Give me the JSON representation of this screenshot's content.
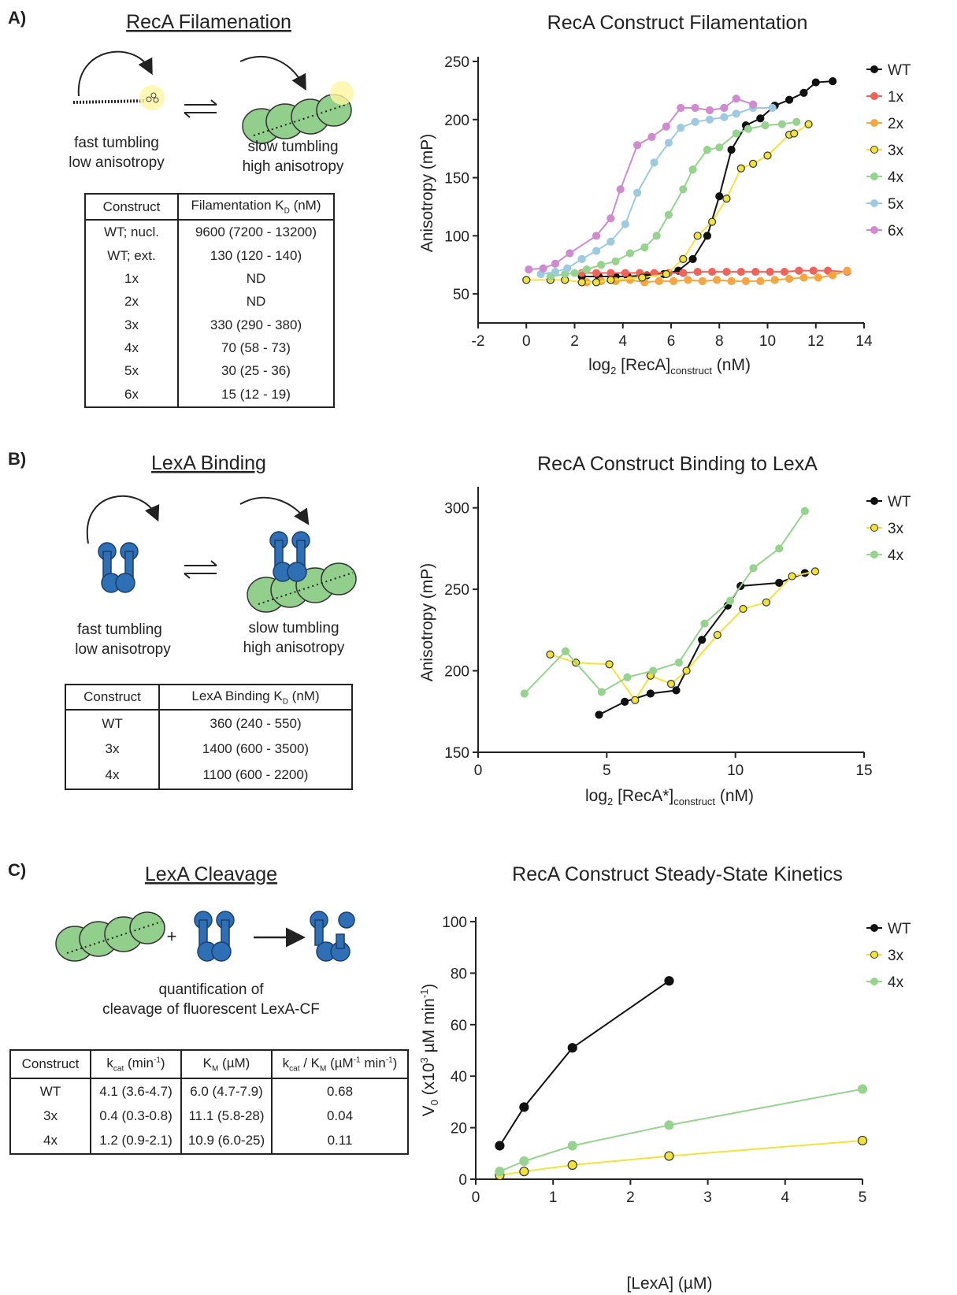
{
  "panels": [
    {
      "label": "A)",
      "heading": "RecA Filamenation",
      "diagram": {
        "left": [
          "fast tumbling",
          "low anisotropy"
        ],
        "right": [
          "slow tumbling",
          "high anisotropy"
        ]
      },
      "table": {
        "header": [
          "Construct",
          [
            "Filamentation K",
            "D",
            " (nM)"
          ]
        ],
        "rows": [
          [
            "WT; nucl.",
            "9600 (7200 - 13200)"
          ],
          [
            "WT; ext.",
            "130 (120 - 140)"
          ],
          [
            "1x",
            "ND"
          ],
          [
            "2x",
            "ND"
          ],
          [
            "3x",
            "330 (290 - 380)"
          ],
          [
            "4x",
            "70 (58 - 73)"
          ],
          [
            "5x",
            "30 (25 - 36)"
          ],
          [
            "6x",
            "15 (12 - 19)"
          ]
        ]
      }
    },
    {
      "label": "B)",
      "heading": "LexA Binding",
      "diagram": {
        "left": [
          "fast tumbling",
          "low anisotropy"
        ],
        "right": [
          "slow tumbling",
          "high anisotropy"
        ]
      },
      "table": {
        "header": [
          "Construct",
          [
            "LexA Binding K",
            "D",
            " (nM)"
          ]
        ],
        "rows": [
          [
            "WT",
            "360 (240 - 550)"
          ],
          [
            "3x",
            "1400 (600 - 3500)"
          ],
          [
            "4x",
            "1100 (600 - 2200)"
          ]
        ]
      }
    },
    {
      "label": "C)",
      "heading": "LexA Cleavage",
      "diagram": {
        "plus": "+",
        "text": [
          "quantification of",
          "cleavage of fluorescent LexA-CF"
        ]
      },
      "table": {
        "header": [
          "Construct",
          [
            "k",
            "cat",
            " (min",
            "-1",
            ")"
          ],
          [
            "K",
            "M",
            " (µM)"
          ],
          [
            "k",
            "cat",
            " / K",
            "M",
            " (µM",
            "-1",
            " min",
            "-1",
            ")"
          ]
        ],
        "rows": [
          [
            "WT",
            "4.1 (3.6-4.7)",
            "6.0 (4.7-7.9)",
            "0.68"
          ],
          [
            "3x",
            "0.4 (0.3-0.8)",
            "11.1 (5.8-28)",
            "0.04"
          ],
          [
            "4x",
            "1.2 (0.9-2.1)",
            "10.9 (6.0-25)",
            "0.11"
          ]
        ]
      }
    }
  ],
  "chart_data": [
    {
      "type": "scatter",
      "title": "RecA Construct Filamentation",
      "x_label": [
        "log",
        "2",
        " [RecA]",
        "construct",
        " (nM)"
      ],
      "y_label": "Anisotropy (mP)",
      "xlim": [
        -2,
        14
      ],
      "xticks": [
        -2,
        0,
        2,
        4,
        6,
        8,
        10,
        12,
        14
      ],
      "ylim": [
        25,
        250
      ],
      "yticks": [
        50,
        100,
        150,
        200,
        250
      ],
      "legend": "right",
      "series": [
        {
          "name": "WT",
          "color": "#111111",
          "x": [
            2.3,
            3,
            3.7,
            4.2,
            5,
            5.7,
            6.3,
            6.9,
            7.5,
            8,
            8.5,
            9.1,
            9.7,
            10.3,
            10.9,
            11.5,
            12,
            12.7
          ],
          "y": [
            65,
            65,
            65,
            65,
            66,
            67,
            70,
            80,
            100,
            134,
            174,
            195,
            201,
            212,
            217,
            223,
            232,
            233
          ]
        },
        {
          "name": "1x",
          "color": "#f0625a",
          "x": [
            2.3,
            2.9,
            3.5,
            4.1,
            4.7,
            5.3,
            5.9,
            6.5,
            7.1,
            7.7,
            8.3,
            8.9,
            9.5,
            10.1,
            10.7,
            11.3,
            11.9,
            12.5,
            13.3
          ],
          "y": [
            68,
            68,
            68,
            68,
            68,
            68,
            68,
            68,
            69,
            69,
            69,
            69,
            69,
            69,
            69,
            70,
            70,
            70,
            69
          ]
        },
        {
          "name": "2x",
          "color": "#f7a540",
          "x": [
            2.5,
            3.1,
            3.7,
            4.3,
            4.9,
            5.5,
            6.1,
            6.7,
            7.3,
            7.9,
            8.5,
            9.1,
            9.7,
            10.3,
            10.9,
            11.5,
            12.1,
            12.7,
            13.3
          ],
          "y": [
            60,
            61,
            61,
            62,
            60,
            61,
            61,
            62,
            61,
            62,
            61,
            61,
            61,
            62,
            63,
            64,
            64,
            66,
            70
          ]
        },
        {
          "name": "3x",
          "color": "#f2e33a",
          "edge_color": "#333333",
          "x": [
            0,
            1,
            1.6,
            2.3,
            2.9,
            3.5,
            4.8,
            5.8,
            6.5,
            7.1,
            7.7,
            8.3,
            8.9,
            9.4,
            10,
            10.9,
            11.1,
            11.7
          ],
          "y": [
            62,
            62,
            62,
            60,
            60,
            62,
            64,
            67,
            80,
            100,
            112,
            132,
            158,
            162,
            169,
            187,
            188,
            196
          ]
        },
        {
          "name": "4x",
          "color": "#95d38e",
          "x": [
            1,
            1.6,
            2,
            2.5,
            3.1,
            3.7,
            4.3,
            4.9,
            5.4,
            5.9,
            6.5,
            6.9,
            7.5,
            8,
            8.7,
            9.2,
            9.9,
            10.6,
            11.2
          ],
          "y": [
            65,
            67,
            68,
            71,
            75,
            78,
            85,
            90,
            100,
            118,
            140,
            157,
            174,
            176,
            188,
            192,
            195,
            196,
            198
          ]
        },
        {
          "name": "5x",
          "color": "#9ecae1",
          "x": [
            0.6,
            1.2,
            1.7,
            2.3,
            2.9,
            3.5,
            4.1,
            4.6,
            5.3,
            5.9,
            6.4,
            7,
            7.6,
            8.2,
            8.7,
            9.4,
            10.2
          ],
          "y": [
            67,
            69,
            72,
            80,
            87,
            95,
            110,
            137,
            163,
            180,
            193,
            198,
            200,
            202,
            205,
            210,
            210
          ]
        },
        {
          "name": "6x",
          "color": "#d08ad0",
          "x": [
            0.1,
            0.7,
            1.2,
            1.8,
            2.9,
            3.5,
            3.9,
            4.6,
            5.2,
            5.8,
            6.4,
            7,
            7.6,
            8.2,
            8.7,
            9.4
          ],
          "y": [
            71,
            72,
            76,
            85,
            100,
            115,
            140,
            178,
            185,
            194,
            210,
            210,
            208,
            210,
            218,
            213
          ]
        }
      ]
    },
    {
      "type": "scatter",
      "title": "RecA Construct Binding to LexA",
      "x_label": [
        "log",
        "2",
        " [RecA*]",
        "construct",
        " (nM)"
      ],
      "y_label": "Anisotropy (mP)",
      "xlim": [
        0,
        15
      ],
      "xticks": [
        0,
        5,
        10,
        15
      ],
      "ylim": [
        150,
        310
      ],
      "yticks": [
        150,
        200,
        250,
        300
      ],
      "legend": "right",
      "series": [
        {
          "name": "WT",
          "color": "#111111",
          "x": [
            4.7,
            5.7,
            6.7,
            7.7,
            8.7,
            9.7,
            10.2,
            11.7,
            12.7
          ],
          "y": [
            173,
            181,
            186,
            188,
            219,
            240,
            252,
            254,
            260
          ]
        },
        {
          "name": "3x",
          "color": "#f2e33a",
          "edge_color": "#333333",
          "x": [
            2.8,
            3.8,
            5.1,
            6.1,
            6.7,
            7.5,
            8.1,
            9.3,
            10.3,
            11.2,
            12.2,
            13.1
          ],
          "y": [
            210,
            205,
            204,
            182,
            197,
            192,
            200,
            222,
            238,
            242,
            258,
            261
          ]
        },
        {
          "name": "4x",
          "color": "#95d38e",
          "x": [
            1.8,
            3.4,
            4.8,
            5.8,
            6.8,
            7.8,
            8.8,
            9.8,
            10.7,
            11.7,
            12.7
          ],
          "y": [
            186,
            212,
            187,
            196,
            200,
            205,
            229,
            243,
            263,
            275,
            298
          ]
        }
      ]
    },
    {
      "type": "scatter",
      "title": "RecA Construct Steady-State Kinetics",
      "x_label": "[LexA] (µM)",
      "y_label": [
        "V",
        "0",
        " (x10",
        "3",
        " µM min",
        "-1",
        ")"
      ],
      "xlim": [
        0,
        5
      ],
      "xticks": [
        0,
        1,
        2,
        3,
        4,
        5
      ],
      "ylim": [
        0,
        100
      ],
      "yticks": [
        0,
        20,
        40,
        60,
        80,
        100
      ],
      "legend": "right",
      "series": [
        {
          "name": "WT",
          "color": "#111111",
          "x": [
            0.31,
            0.625,
            1.25,
            2.5
          ],
          "y": [
            13,
            28,
            51,
            77
          ]
        },
        {
          "name": "3x",
          "color": "#f2e33a",
          "edge_color": "#333333",
          "x": [
            0.31,
            0.625,
            1.25,
            2.5,
            5
          ],
          "y": [
            1.5,
            3,
            5.5,
            9,
            15
          ]
        },
        {
          "name": "4x",
          "color": "#95d38e",
          "x": [
            0.31,
            0.625,
            1.25,
            2.5,
            5
          ],
          "y": [
            3,
            7,
            13,
            21,
            35
          ]
        }
      ]
    }
  ]
}
